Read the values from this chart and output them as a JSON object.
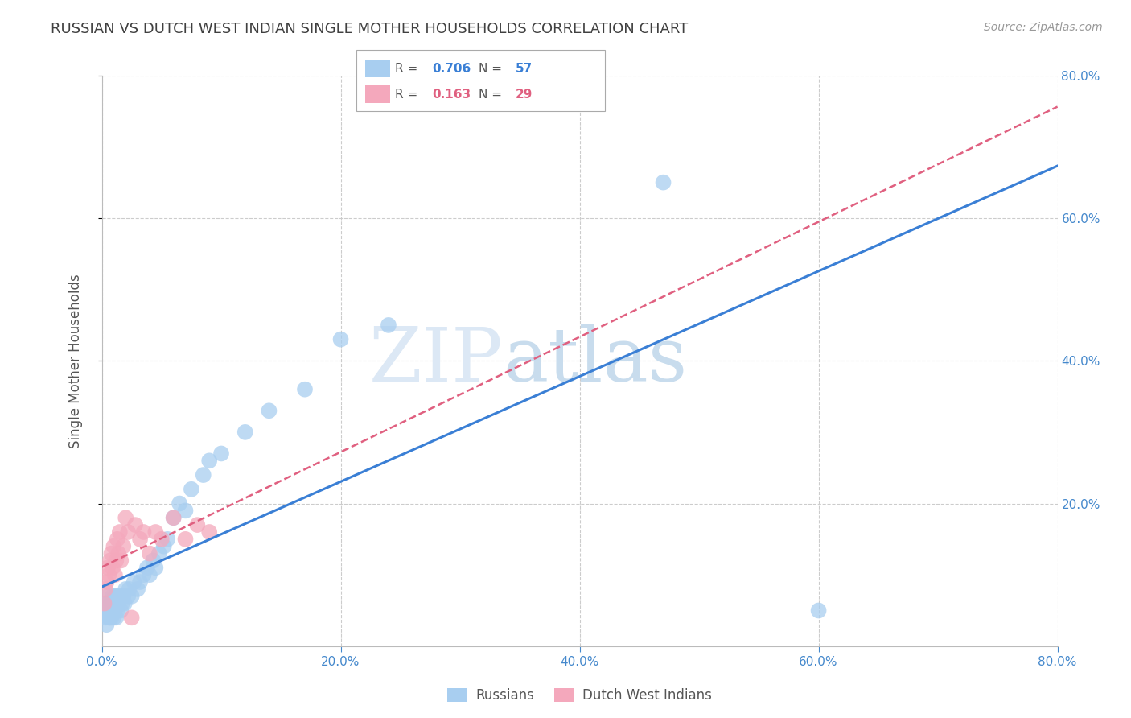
{
  "title": "RUSSIAN VS DUTCH WEST INDIAN SINGLE MOTHER HOUSEHOLDS CORRELATION CHART",
  "source": "Source: ZipAtlas.com",
  "ylabel": "Single Mother Households",
  "xlim": [
    0.0,
    0.8
  ],
  "ylim": [
    0.0,
    0.8
  ],
  "xtick_labels": [
    "0.0%",
    "20.0%",
    "40.0%",
    "60.0%",
    "80.0%"
  ],
  "xtick_vals": [
    0.0,
    0.2,
    0.4,
    0.6,
    0.8
  ],
  "right_ytick_labels": [
    "80.0%",
    "60.0%",
    "40.0%",
    "20.0%"
  ],
  "right_ytick_vals": [
    0.8,
    0.6,
    0.4,
    0.2
  ],
  "russian_color": "#a8cef0",
  "dutch_color": "#f4a8bc",
  "russian_line_color": "#3a7fd5",
  "dutch_line_color": "#e06080",
  "legend_R1": "0.706",
  "legend_N1": "57",
  "legend_R2": "0.163",
  "legend_N2": "29",
  "title_color": "#404040",
  "axis_color": "#4488cc",
  "grid_color": "#cccccc",
  "watermark_zip": "ZIP",
  "watermark_atlas": "atlas",
  "russians_x": [
    0.002,
    0.003,
    0.004,
    0.004,
    0.005,
    0.005,
    0.006,
    0.006,
    0.007,
    0.007,
    0.008,
    0.008,
    0.009,
    0.009,
    0.01,
    0.01,
    0.011,
    0.011,
    0.012,
    0.012,
    0.013,
    0.013,
    0.014,
    0.015,
    0.016,
    0.017,
    0.018,
    0.019,
    0.02,
    0.022,
    0.023,
    0.025,
    0.027,
    0.03,
    0.032,
    0.035,
    0.038,
    0.04,
    0.043,
    0.045,
    0.048,
    0.052,
    0.055,
    0.06,
    0.065,
    0.07,
    0.075,
    0.085,
    0.09,
    0.1,
    0.12,
    0.14,
    0.17,
    0.2,
    0.24,
    0.47,
    0.6
  ],
  "russians_y": [
    0.05,
    0.04,
    0.06,
    0.03,
    0.05,
    0.07,
    0.04,
    0.06,
    0.05,
    0.04,
    0.06,
    0.04,
    0.07,
    0.05,
    0.06,
    0.04,
    0.07,
    0.05,
    0.06,
    0.04,
    0.07,
    0.05,
    0.06,
    0.07,
    0.05,
    0.06,
    0.07,
    0.06,
    0.08,
    0.07,
    0.08,
    0.07,
    0.09,
    0.08,
    0.09,
    0.1,
    0.11,
    0.1,
    0.12,
    0.11,
    0.13,
    0.14,
    0.15,
    0.18,
    0.2,
    0.19,
    0.22,
    0.24,
    0.26,
    0.27,
    0.3,
    0.33,
    0.36,
    0.43,
    0.45,
    0.65,
    0.05
  ],
  "dutch_x": [
    0.002,
    0.003,
    0.004,
    0.005,
    0.006,
    0.007,
    0.008,
    0.009,
    0.01,
    0.011,
    0.012,
    0.013,
    0.014,
    0.015,
    0.016,
    0.018,
    0.02,
    0.022,
    0.025,
    0.028,
    0.032,
    0.035,
    0.04,
    0.045,
    0.05,
    0.06,
    0.07,
    0.08,
    0.09
  ],
  "dutch_y": [
    0.06,
    0.08,
    0.09,
    0.11,
    0.1,
    0.12,
    0.13,
    0.11,
    0.14,
    0.1,
    0.12,
    0.15,
    0.13,
    0.16,
    0.12,
    0.14,
    0.18,
    0.16,
    0.04,
    0.17,
    0.15,
    0.16,
    0.13,
    0.16,
    0.15,
    0.18,
    0.15,
    0.17,
    0.16
  ]
}
